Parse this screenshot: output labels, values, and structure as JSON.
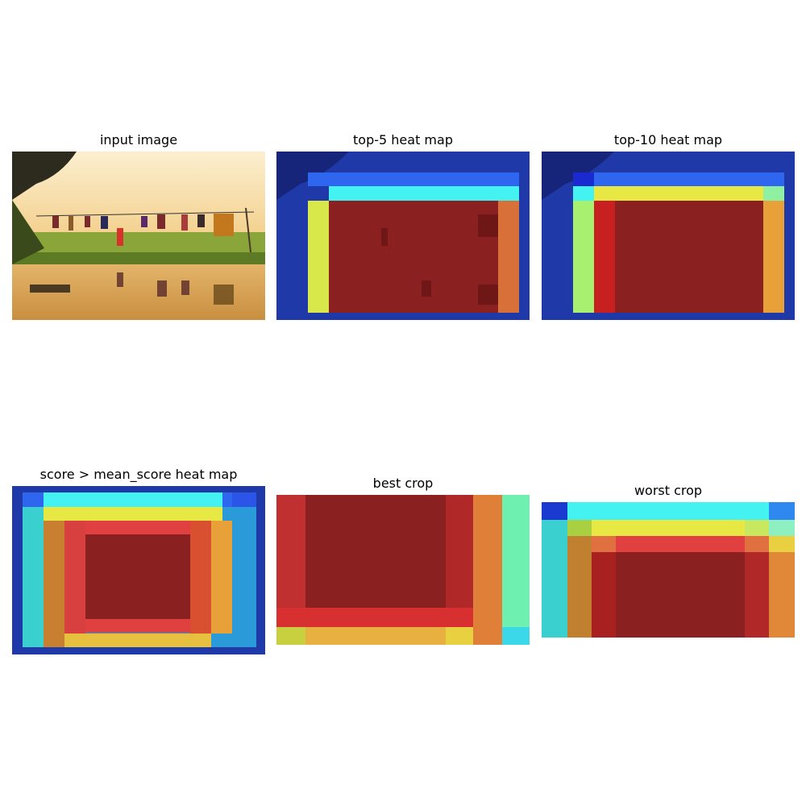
{
  "panels": [
    {
      "title": "input image"
    },
    {
      "title": "top-5 heat map"
    },
    {
      "title": "top-10 heat map"
    },
    {
      "title": "score > mean_score heat map"
    },
    {
      "title": "best crop"
    },
    {
      "title": "worst crop"
    }
  ],
  "colors": {
    "deep_blue": "#1f2f9e",
    "blue": "#2a55e8",
    "cyan": "#3ff0f0",
    "yellow": "#e8e844",
    "orange": "#e8843a",
    "red": "#c81e1e",
    "dark_red": "#7a1010",
    "sky": "#fbe3b0",
    "grass": "#7a9a2a",
    "water": "#d9a75a"
  }
}
